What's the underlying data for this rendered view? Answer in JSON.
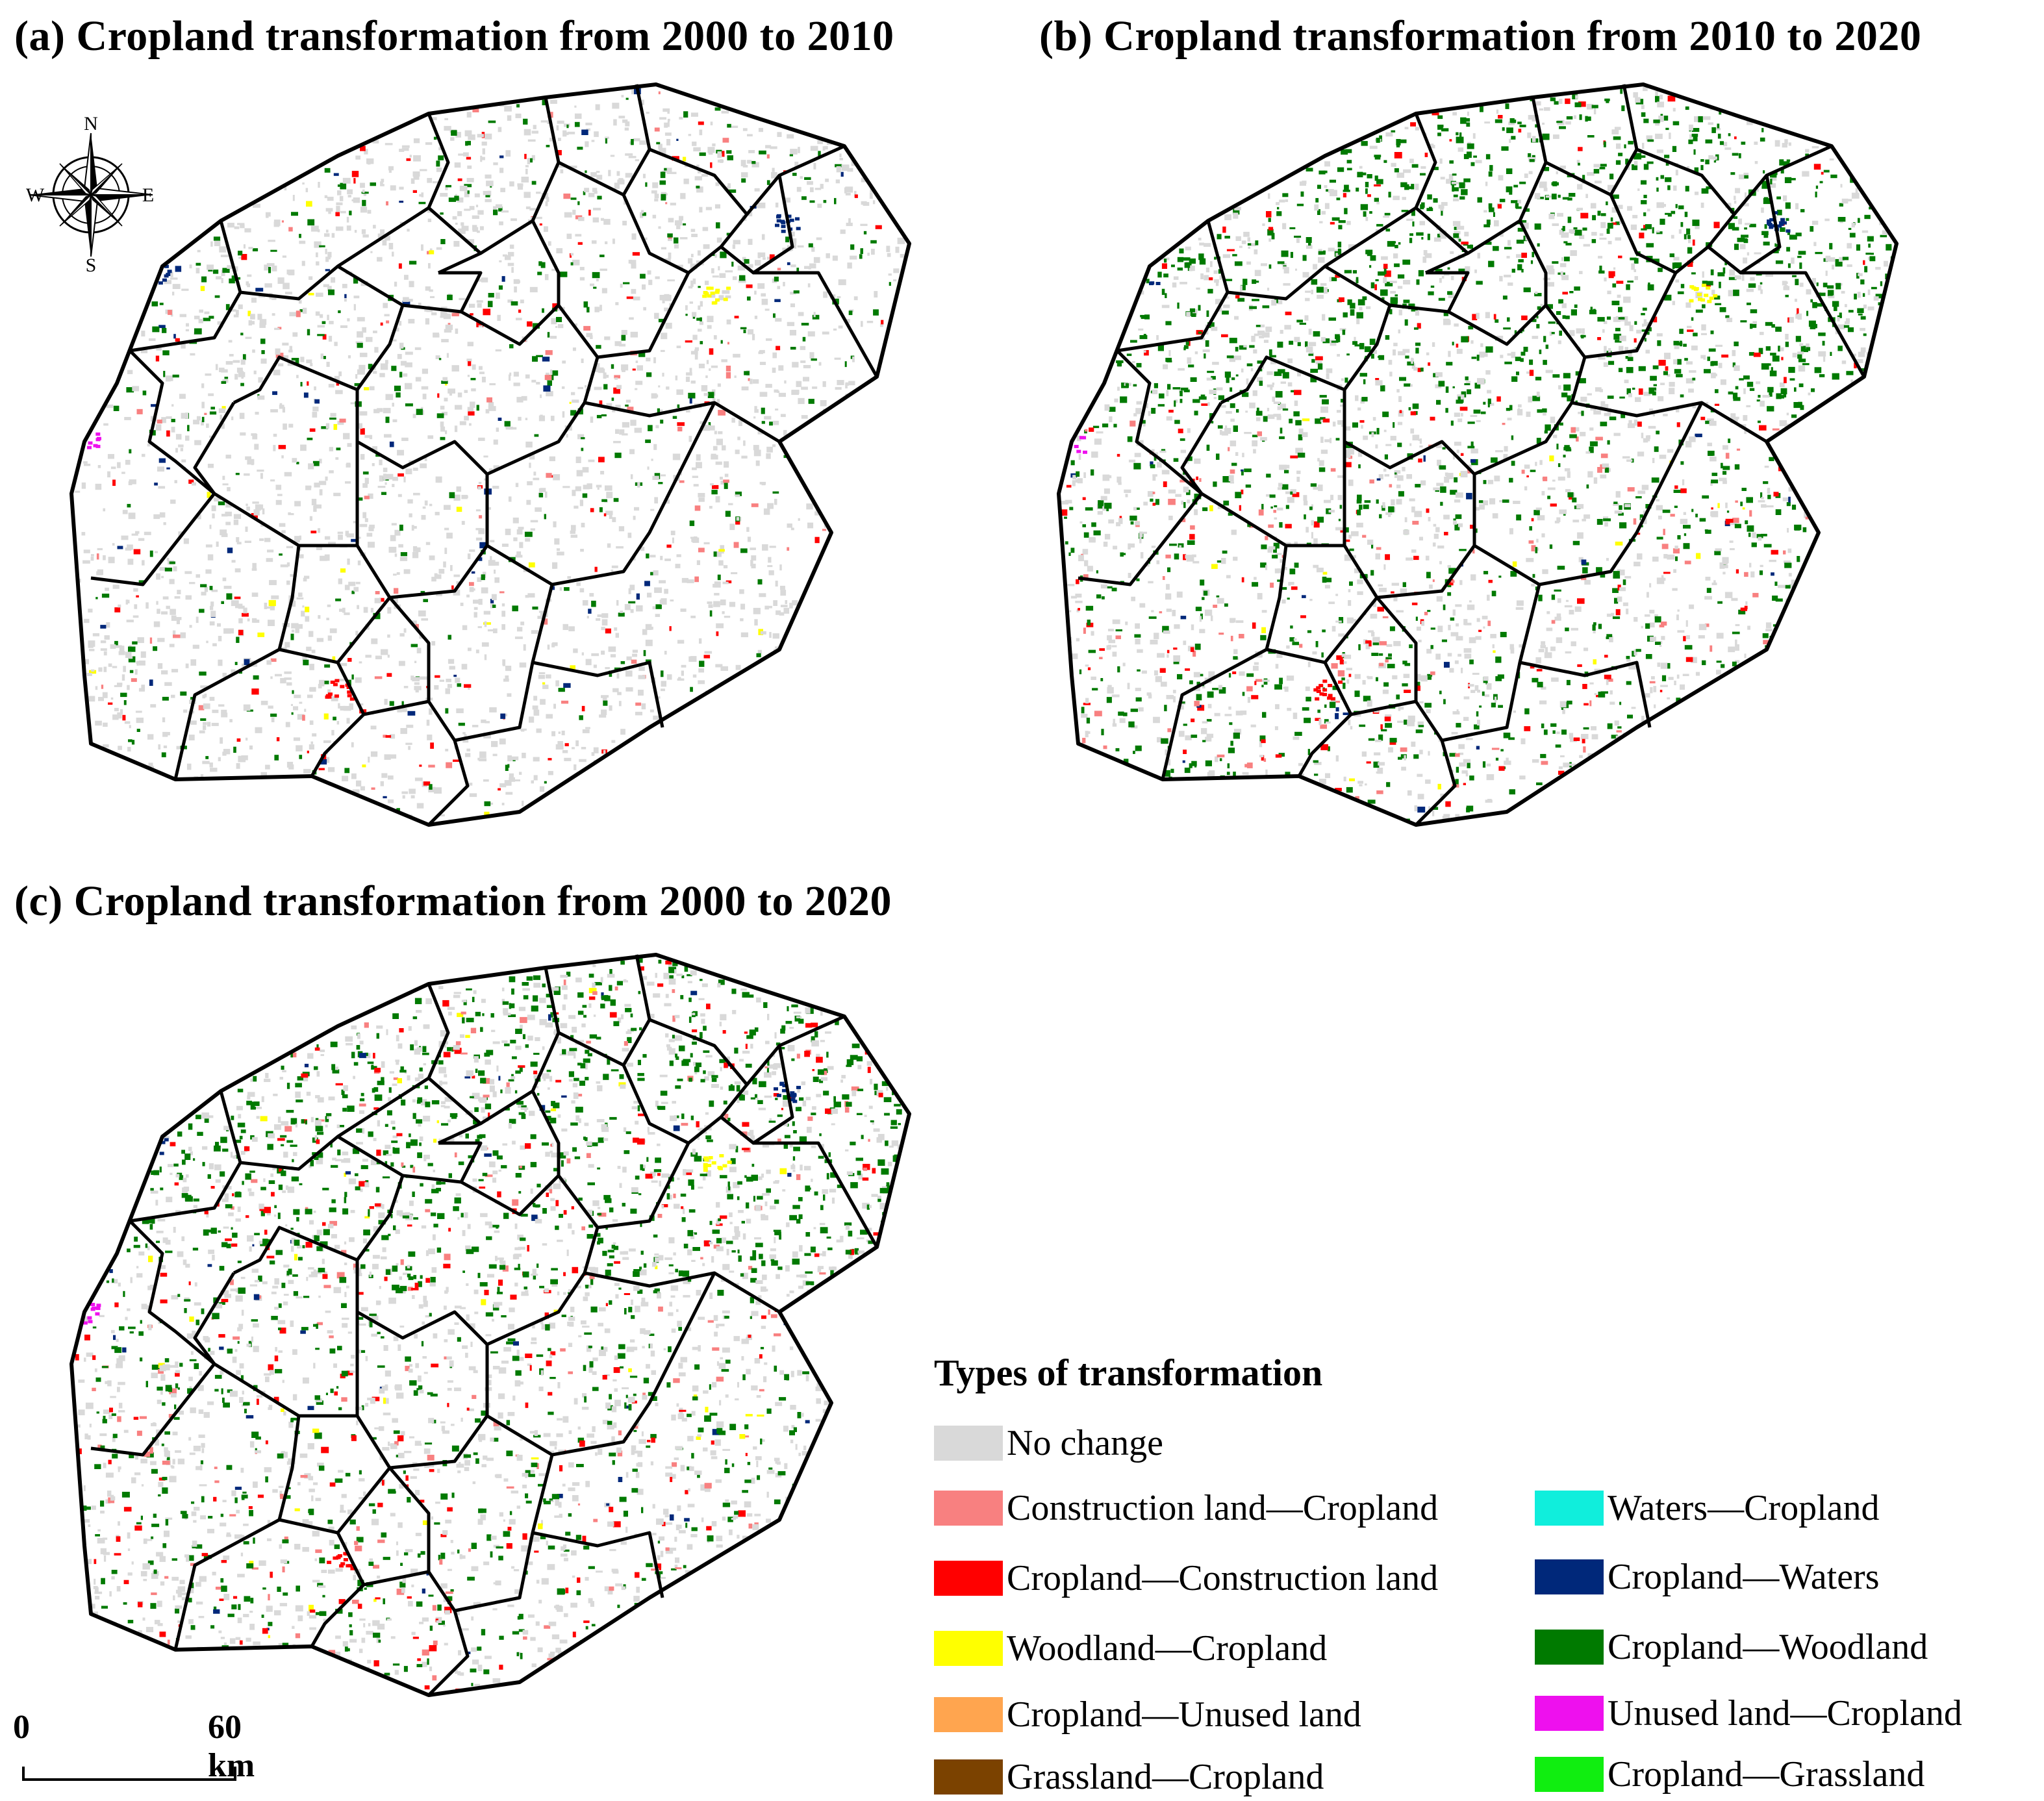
{
  "panels": [
    {
      "id": "a",
      "title": "(a) Cropland transformation from 2000 to 2010"
    },
    {
      "id": "b",
      "title": "(b) Cropland transformation from 2010 to 2020"
    },
    {
      "id": "c",
      "title": "(c) Cropland transformation from 2000 to 2020"
    }
  ],
  "compass": {
    "north": "N",
    "south": "S",
    "east": "E",
    "west": "W"
  },
  "scale": {
    "zero": "0",
    "max": "60 km"
  },
  "legend": {
    "title": "Types of transformation",
    "items": [
      {
        "label": "No change",
        "color": "#d9d9d9"
      },
      {
        "label": "Construction land—Cropland",
        "color": "#f88080"
      },
      {
        "label": "Cropland—Construction land",
        "color": "#ff0000"
      },
      {
        "label": "Woodland—Cropland",
        "color": "#ffff00"
      },
      {
        "label": "Cropland—Unused land",
        "color": "#ffa54f"
      },
      {
        "label": "Grassland—Cropland",
        "color": "#7b4200"
      },
      {
        "label": "Waters—Cropland",
        "color": "#10eedc"
      },
      {
        "label": "Cropland—Waters",
        "color": "#00287a"
      },
      {
        "label": "Cropland—Woodland",
        "color": "#007a00"
      },
      {
        "label": "Unused land—Cropland",
        "color": "#ee10ee"
      },
      {
        "label": "Cropland—Grassland",
        "color": "#10ee10"
      }
    ]
  }
}
